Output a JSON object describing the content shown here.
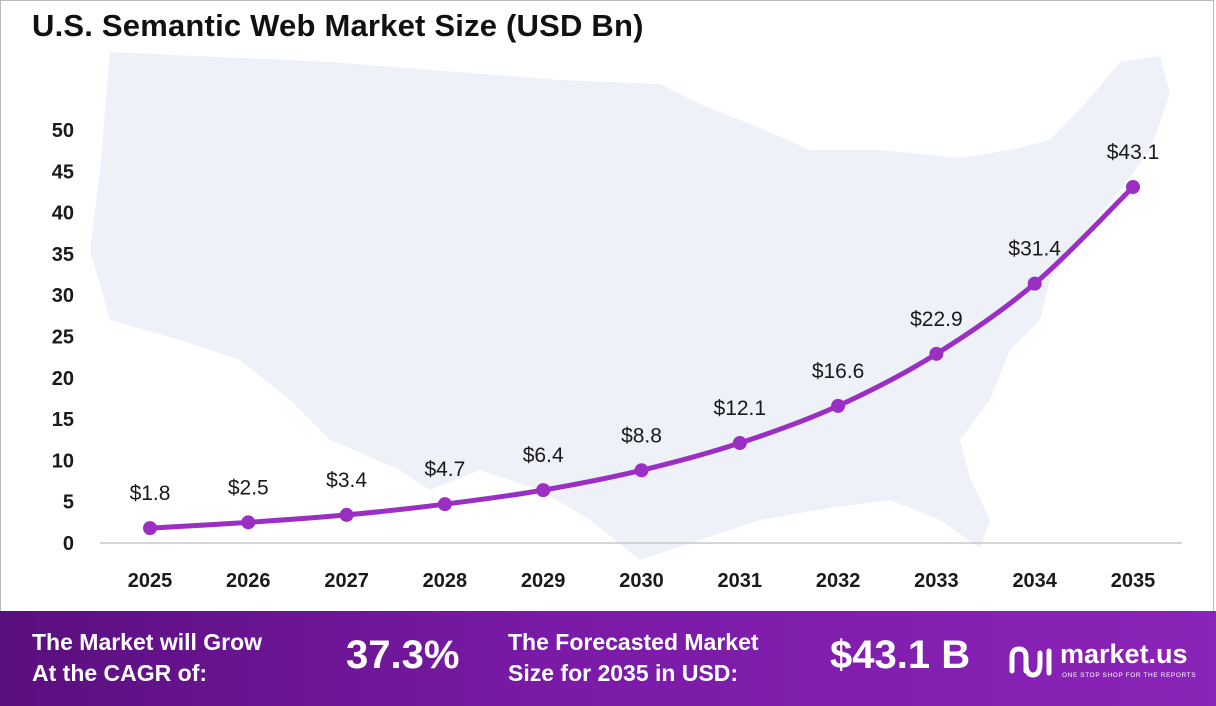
{
  "title": "U.S. Semantic Web Market Size (USD Bn)",
  "chart_data": {
    "type": "line",
    "categories": [
      "2025",
      "2026",
      "2027",
      "2028",
      "2029",
      "2030",
      "2031",
      "2032",
      "2033",
      "2034",
      "2035"
    ],
    "values": [
      1.8,
      2.5,
      3.4,
      4.7,
      6.4,
      8.8,
      12.1,
      16.6,
      22.9,
      31.4,
      43.1
    ],
    "data_labels": [
      "$1.8",
      "$2.5",
      "$3.4",
      "$4.7",
      "$6.4",
      "$8.8",
      "$12.1",
      "$16.6",
      "$22.9",
      "$31.4",
      "$43.1"
    ],
    "yticks": [
      "0",
      "5",
      "10",
      "15",
      "20",
      "25",
      "30",
      "35",
      "40",
      "45",
      "50"
    ],
    "ylim": [
      0,
      50
    ],
    "xlabel": "",
    "ylabel": "",
    "grid": false,
    "line_color": "#9b2fc4"
  },
  "footer": {
    "cagr_label_line1": "The Market will Grow",
    "cagr_label_line2": "At the CAGR of:",
    "cagr_value": "37.3%",
    "forecast_label_line1": "The Forecasted Market",
    "forecast_label_line2": "Size for 2035 in USD:",
    "forecast_value": "$43.1 B",
    "logo_name": "market.us",
    "logo_tagline": "ONE STOP SHOP FOR THE REPORTS",
    "logo_icon": "market-us-logo-icon"
  }
}
